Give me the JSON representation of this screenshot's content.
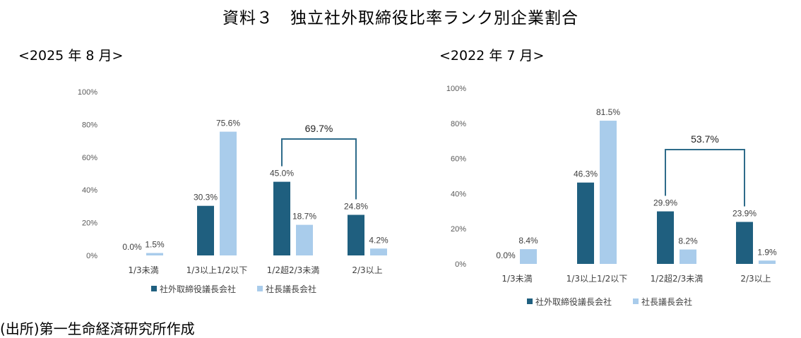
{
  "title": "資料３　独立社外取締役比率ランク別企業割合",
  "source": "(出所)第一生命経済研究所作成",
  "colors": {
    "dark": "#1F5F7F",
    "light": "#A9CCEB",
    "bracket": "#2E6B8A"
  },
  "chart_data": [
    {
      "type": "bar",
      "subtitle": "<2025 年 8 月>",
      "categories": [
        "1/3未満",
        "1/3以上1/2以下",
        "1/2超2/3未満",
        "2/3以上"
      ],
      "series": [
        {
          "name": "社外取締役議長会社",
          "values": [
            0.0,
            30.3,
            45.0,
            24.8
          ],
          "labels": [
            "0.0%",
            "30.3%",
            "45.0%",
            "24.8%"
          ]
        },
        {
          "name": "社長議長会社",
          "values": [
            1.5,
            75.6,
            18.7,
            4.2
          ],
          "labels": [
            "1.5%",
            "75.6%",
            "18.7%",
            "4.2%"
          ]
        }
      ],
      "ylim": [
        0,
        100
      ],
      "yticks": [
        "0%",
        "20%",
        "40%",
        "60%",
        "80%",
        "100%"
      ],
      "legend": "bottom",
      "annotation": {
        "text": "69.7%",
        "from_category": 2,
        "to_category": 3
      }
    },
    {
      "type": "bar",
      "subtitle": "<2022 年 7 月>",
      "categories": [
        "1/3未満",
        "1/3以上1/2以下",
        "1/2超2/3未満",
        "2/3以上"
      ],
      "series": [
        {
          "name": "社外取締役議長会社",
          "values": [
            0.0,
            46.3,
            29.9,
            23.9
          ],
          "labels": [
            "0.0%",
            "46.3%",
            "29.9%",
            "23.9%"
          ]
        },
        {
          "name": "社長議長会社",
          "values": [
            8.4,
            81.5,
            8.2,
            1.9
          ],
          "labels": [
            "8.4%",
            "81.5%",
            "8.2%",
            "1.9%"
          ]
        }
      ],
      "ylim": [
        0,
        100
      ],
      "yticks": [
        "0%",
        "20%",
        "40%",
        "60%",
        "80%",
        "100%"
      ],
      "legend": "bottom",
      "annotation": {
        "text": "53.7%",
        "from_category": 2,
        "to_category": 3
      }
    }
  ]
}
